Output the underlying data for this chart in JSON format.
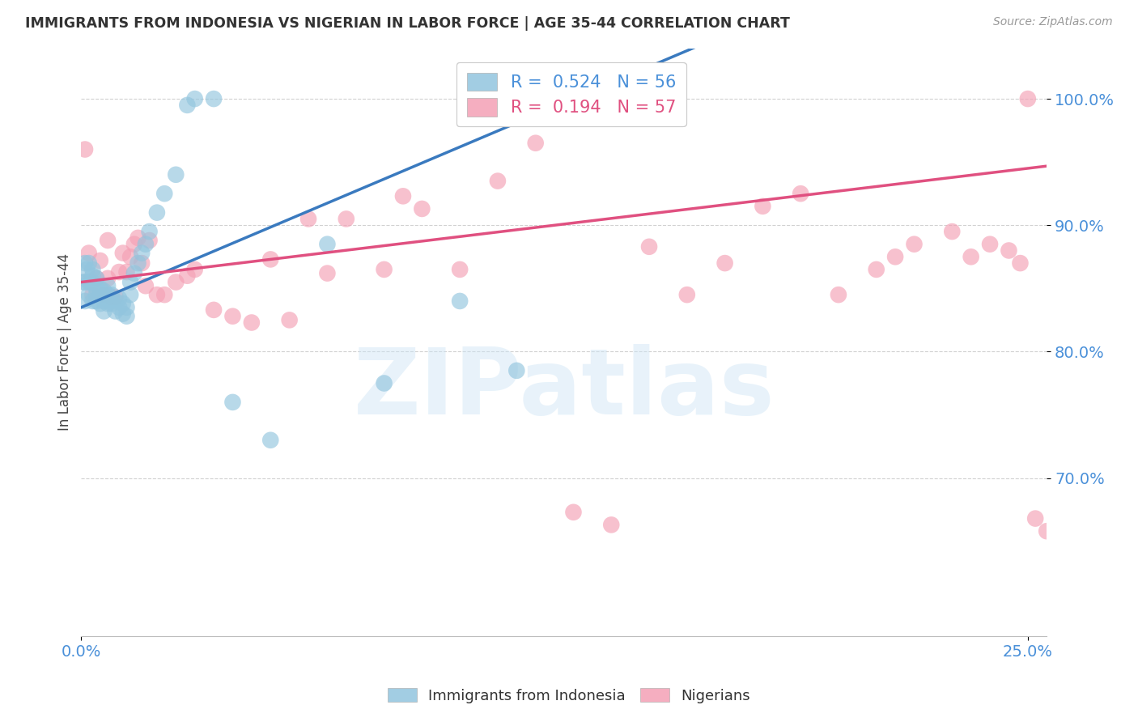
{
  "title": "IMMIGRANTS FROM INDONESIA VS NIGERIAN IN LABOR FORCE | AGE 35-44 CORRELATION CHART",
  "source": "Source: ZipAtlas.com",
  "ylabel": "In Labor Force | Age 35-44",
  "watermark": "ZIPatlas",
  "x_min": 0.0,
  "x_max": 0.255,
  "y_min": 0.575,
  "y_max": 1.04,
  "yticks": [
    0.7,
    0.8,
    0.9,
    1.0
  ],
  "ytick_labels": [
    "70.0%",
    "80.0%",
    "90.0%",
    "100.0%"
  ],
  "blue_color": "#92c5de",
  "pink_color": "#f4a0b5",
  "blue_line_color": "#3a7abf",
  "pink_line_color": "#e05080",
  "axis_color": "#4a90d9",
  "title_color": "#333333",
  "grid_color": "#cccccc",
  "blue_R": 0.524,
  "blue_N": 56,
  "pink_R": 0.194,
  "pink_N": 57,
  "blue_scatter_x": [
    0.0005,
    0.001,
    0.001,
    0.001,
    0.0015,
    0.002,
    0.002,
    0.002,
    0.0025,
    0.003,
    0.003,
    0.003,
    0.003,
    0.004,
    0.004,
    0.004,
    0.004,
    0.005,
    0.005,
    0.005,
    0.006,
    0.006,
    0.006,
    0.007,
    0.007,
    0.007,
    0.008,
    0.008,
    0.009,
    0.009,
    0.01,
    0.01,
    0.011,
    0.011,
    0.012,
    0.012,
    0.013,
    0.013,
    0.014,
    0.015,
    0.016,
    0.017,
    0.018,
    0.02,
    0.022,
    0.025,
    0.028,
    0.03,
    0.035,
    0.04,
    0.05,
    0.065,
    0.08,
    0.1,
    0.115,
    0.13
  ],
  "blue_scatter_y": [
    0.855,
    0.87,
    0.84,
    0.855,
    0.865,
    0.855,
    0.845,
    0.87,
    0.855,
    0.84,
    0.855,
    0.86,
    0.865,
    0.84,
    0.845,
    0.85,
    0.858,
    0.838,
    0.845,
    0.85,
    0.832,
    0.84,
    0.848,
    0.838,
    0.845,
    0.852,
    0.838,
    0.845,
    0.832,
    0.84,
    0.835,
    0.842,
    0.83,
    0.838,
    0.828,
    0.835,
    0.845,
    0.855,
    0.862,
    0.87,
    0.878,
    0.885,
    0.895,
    0.91,
    0.925,
    0.94,
    0.995,
    1.0,
    1.0,
    0.76,
    0.73,
    0.885,
    0.775,
    0.84,
    0.785,
    0.995
  ],
  "pink_scatter_x": [
    0.001,
    0.002,
    0.003,
    0.004,
    0.005,
    0.006,
    0.007,
    0.007,
    0.008,
    0.009,
    0.01,
    0.011,
    0.012,
    0.013,
    0.014,
    0.015,
    0.016,
    0.017,
    0.018,
    0.02,
    0.022,
    0.025,
    0.028,
    0.03,
    0.035,
    0.04,
    0.045,
    0.05,
    0.055,
    0.06,
    0.065,
    0.07,
    0.08,
    0.085,
    0.09,
    0.1,
    0.11,
    0.12,
    0.13,
    0.14,
    0.15,
    0.16,
    0.17,
    0.18,
    0.19,
    0.2,
    0.21,
    0.215,
    0.22,
    0.23,
    0.235,
    0.24,
    0.245,
    0.248,
    0.25,
    0.252,
    0.255
  ],
  "pink_scatter_y": [
    0.96,
    0.878,
    0.845,
    0.858,
    0.872,
    0.845,
    0.858,
    0.888,
    0.843,
    0.843,
    0.863,
    0.878,
    0.863,
    0.875,
    0.885,
    0.89,
    0.87,
    0.852,
    0.888,
    0.845,
    0.845,
    0.855,
    0.86,
    0.865,
    0.833,
    0.828,
    0.823,
    0.873,
    0.825,
    0.905,
    0.862,
    0.905,
    0.865,
    0.923,
    0.913,
    0.865,
    0.935,
    0.965,
    0.673,
    0.663,
    0.883,
    0.845,
    0.87,
    0.915,
    0.925,
    0.845,
    0.865,
    0.875,
    0.885,
    0.895,
    0.875,
    0.885,
    0.88,
    0.87,
    1.0,
    0.668,
    0.658
  ]
}
